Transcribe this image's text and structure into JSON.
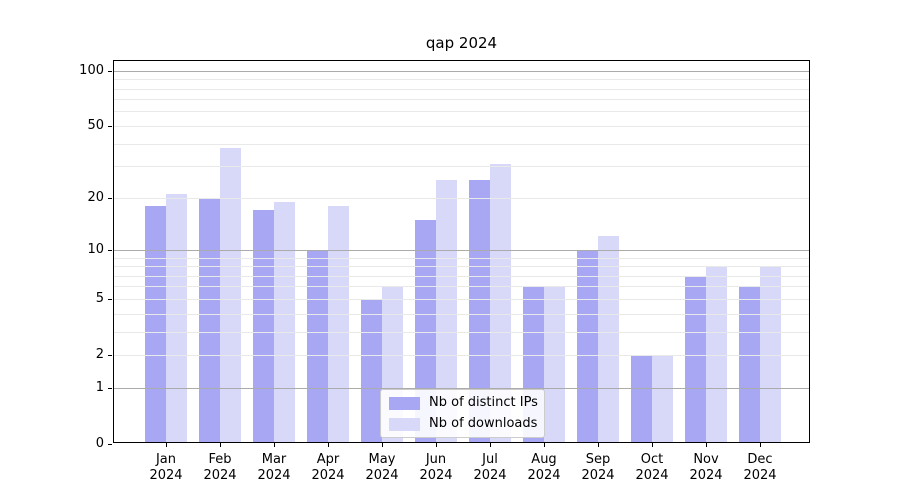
{
  "title": "qap 2024",
  "chart_data": {
    "type": "bar",
    "title": "qap 2024",
    "categories": [
      "Jan",
      "Feb",
      "Mar",
      "Apr",
      "May",
      "Jun",
      "Jul",
      "Aug",
      "Sep",
      "Oct",
      "Nov",
      "Dec"
    ],
    "category_year": "2024",
    "series": [
      {
        "name": "Nb of distinct IPs",
        "color": "#a7a7f3",
        "values": [
          18,
          20,
          17,
          10,
          5,
          15,
          25,
          6,
          10,
          2,
          7,
          6
        ]
      },
      {
        "name": "Nb of downloads",
        "color": "#d8d8f8",
        "values": [
          21,
          38,
          19,
          18,
          6,
          25,
          31,
          6,
          12,
          2,
          8,
          8
        ]
      }
    ],
    "y_scale": "log1p",
    "y_ticks": [
      0,
      1,
      2,
      5,
      10,
      20,
      50,
      100
    ],
    "y_major_gridlines": [
      1,
      10,
      100
    ],
    "y_minor_gridlines": [
      2,
      3,
      4,
      5,
      6,
      7,
      8,
      9,
      20,
      30,
      40,
      50,
      60,
      70,
      80,
      90
    ],
    "ylim": [
      0,
      115
    ],
    "grid": "horizontal",
    "legend_position": "lower-center",
    "xlabel": "",
    "ylabel": ""
  },
  "colors": {
    "background": "#ffffff",
    "spine": "#000000",
    "major_grid": "#ababab",
    "minor_grid": "#e9e9e9",
    "text": "#000000",
    "legend_border": "#cccccc",
    "legend_bg": "#ffffff"
  }
}
